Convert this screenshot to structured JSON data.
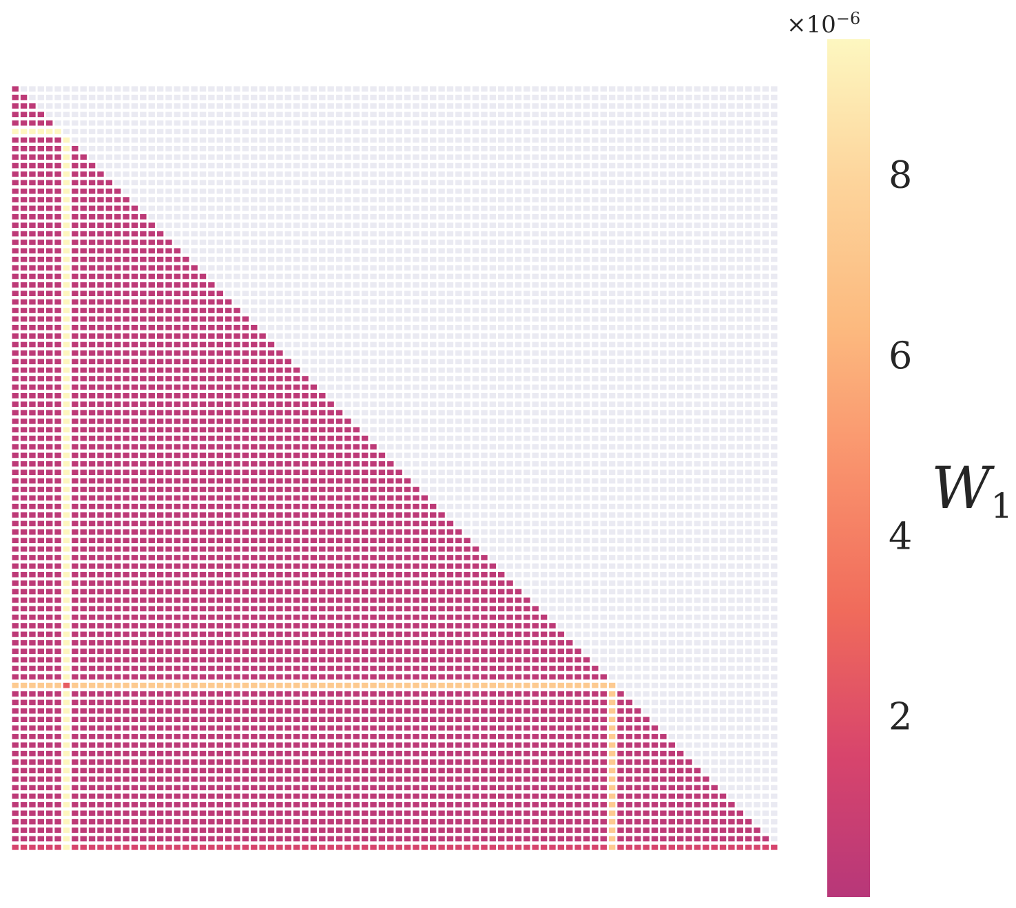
{
  "chart_data": {
    "type": "heatmap",
    "title": "",
    "xlabel": "",
    "ylabel": "",
    "grid": "lower-triangular",
    "n": 90,
    "mask": "upper-triangle-excluding-diagonal",
    "base_value": 0.3,
    "highlight_rows": [
      {
        "index": 5,
        "value": 9.5
      },
      {
        "index": 70,
        "value": 7.3
      }
    ],
    "highlight_cols": [
      {
        "index": 6,
        "value": 9.4
      },
      {
        "index": 70,
        "value": 7.3
      }
    ],
    "special_cells": [
      {
        "row": 70,
        "col": 6,
        "value": 2.6
      }
    ],
    "bottom_row_value": 1.5,
    "colormap": "magma-like",
    "colors": {
      "mask": "#eaeaf2",
      "stops": [
        "#b73779",
        "#d8456c",
        "#f06b5b",
        "#f9916c",
        "#fcba7f",
        "#fdd49b",
        "#fdf7c0"
      ]
    },
    "colorbar": {
      "label_main": "W",
      "label_sub": "1",
      "scale_base": "×10",
      "scale_exp": "−6",
      "min": 0,
      "max": 9.5,
      "ticks": [
        {
          "value": 2,
          "label": "2"
        },
        {
          "value": 4,
          "label": "4"
        },
        {
          "value": 6,
          "label": "6"
        },
        {
          "value": 8,
          "label": "8"
        }
      ]
    }
  }
}
